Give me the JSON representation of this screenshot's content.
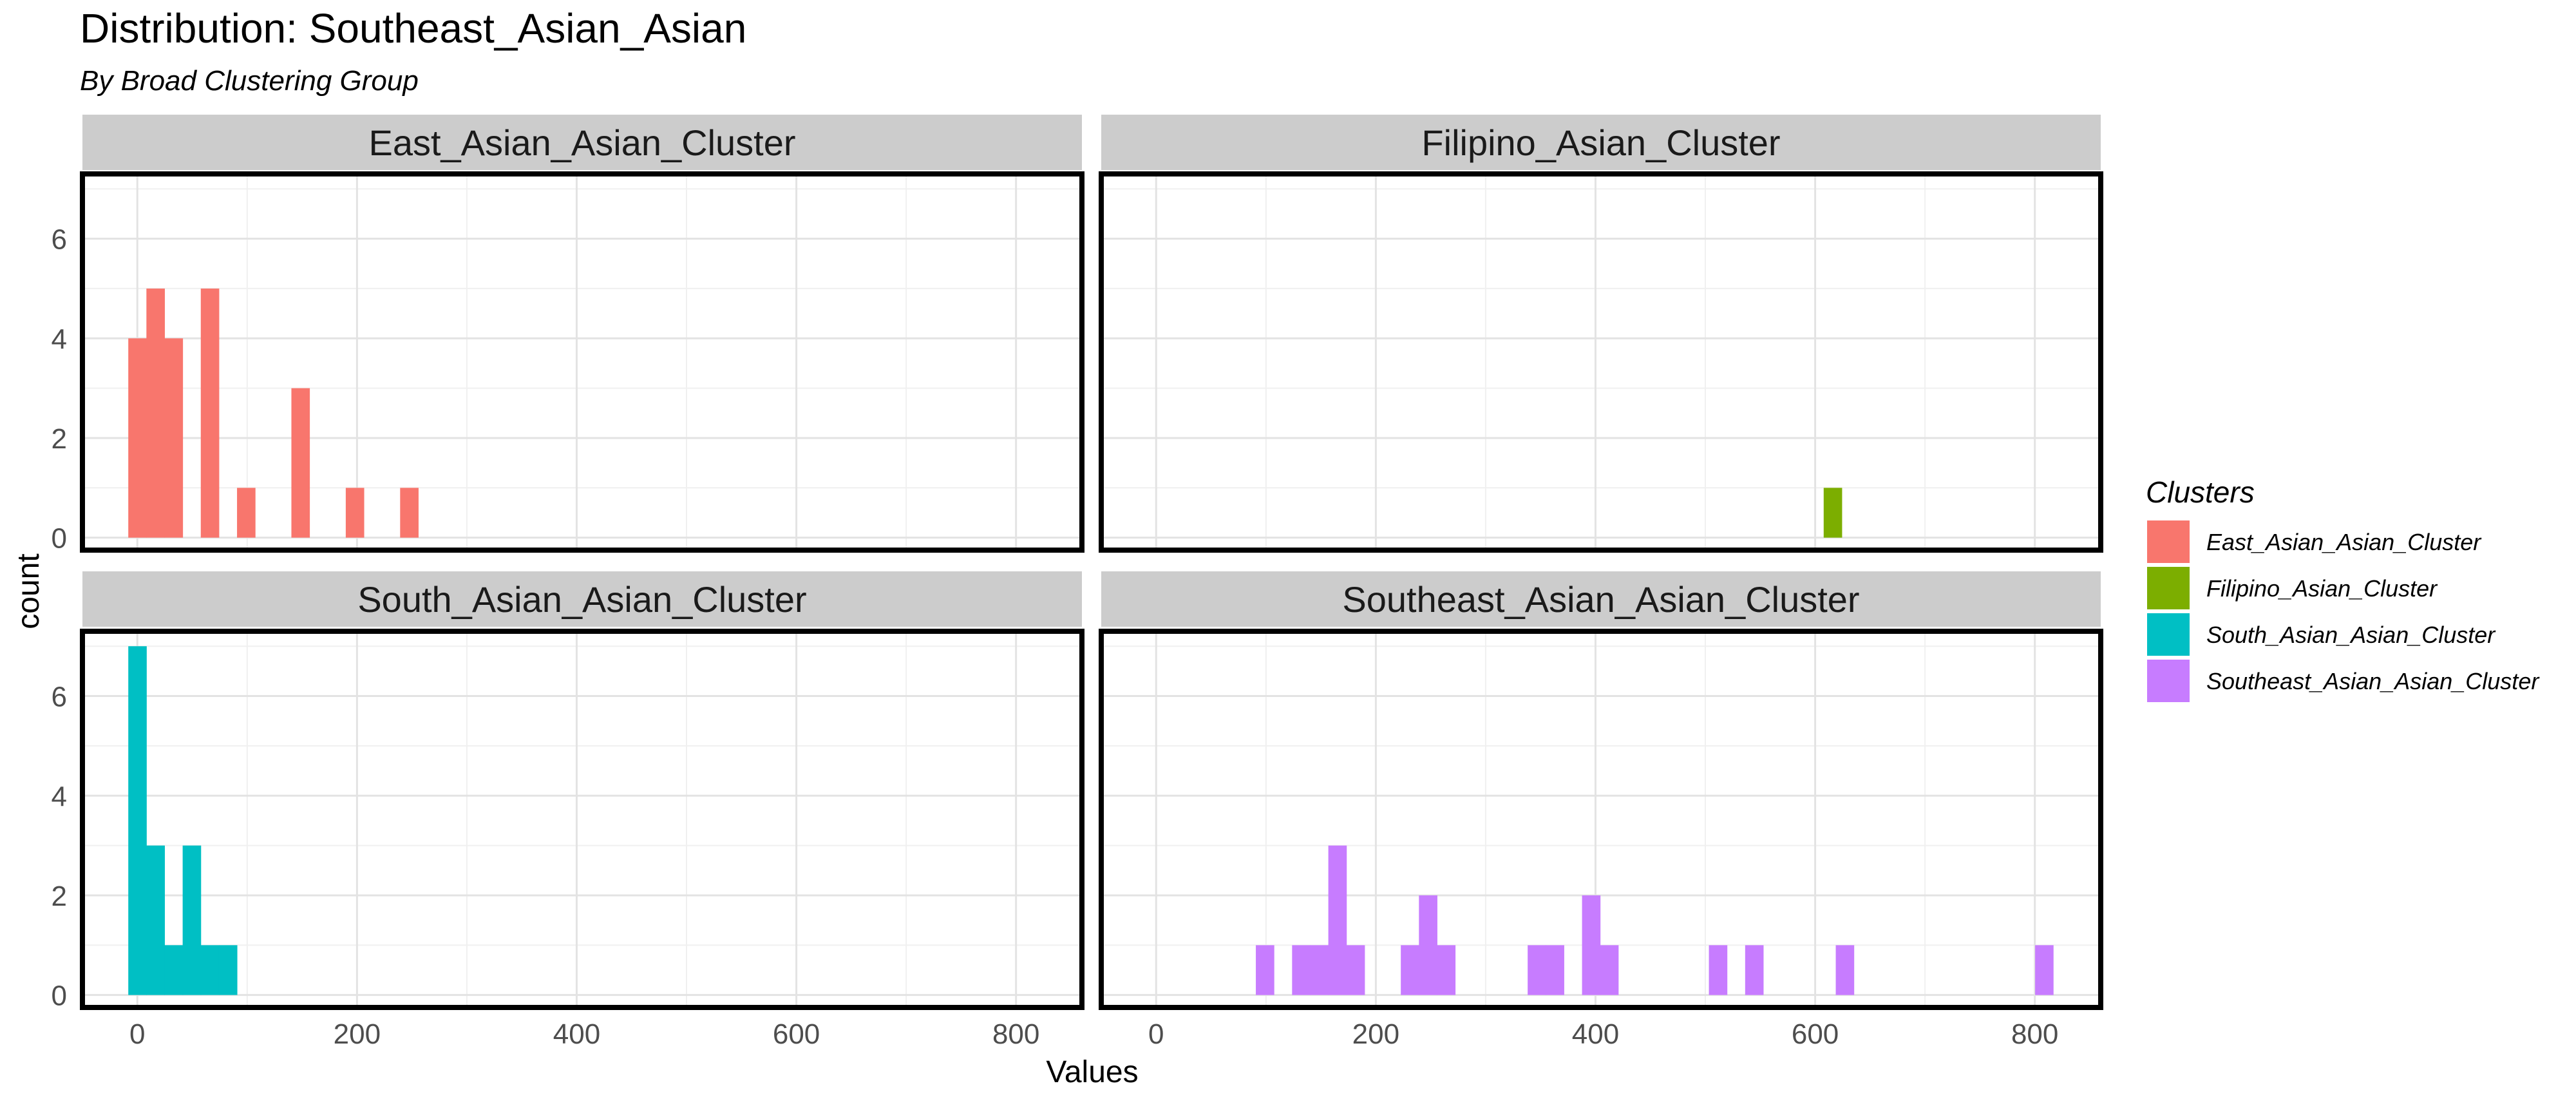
{
  "chart_data": {
    "type": "bar",
    "title": "Distribution: Southeast_Asian_Asian",
    "subtitle": "By Broad Clustering Group",
    "xlabel": "Values",
    "ylabel": "count",
    "xlim": [
      -50,
      860
    ],
    "ylim": [
      -0.25,
      7.3
    ],
    "x_ticks": [
      0,
      200,
      400,
      600,
      800
    ],
    "y_ticks": [
      0,
      2,
      4,
      6
    ],
    "bin_width": 16.5,
    "grid": true,
    "legend": {
      "title": "Clusters",
      "position": "right",
      "entries": [
        {
          "label": "East_Asian_Asian_Cluster",
          "color": "#F8766D"
        },
        {
          "label": "Filipino_Asian_Cluster",
          "color": "#7CAE00"
        },
        {
          "label": "South_Asian_Asian_Cluster",
          "color": "#00BFC4"
        },
        {
          "label": "Southeast_Asian_Asian_Cluster",
          "color": "#C77CFF"
        }
      ]
    },
    "facets": [
      {
        "name": "East_Asian_Asian_Cluster",
        "color": "#F8766D",
        "bins": [
          {
            "x": 0,
            "count": 4
          },
          {
            "x": 16.5,
            "count": 5
          },
          {
            "x": 33,
            "count": 4
          },
          {
            "x": 66,
            "count": 5
          },
          {
            "x": 99,
            "count": 1
          },
          {
            "x": 148.5,
            "count": 3
          },
          {
            "x": 198,
            "count": 1
          },
          {
            "x": 247.5,
            "count": 1
          }
        ]
      },
      {
        "name": "Filipino_Asian_Cluster",
        "color": "#7CAE00",
        "bins": [
          {
            "x": 616,
            "count": 1
          }
        ]
      },
      {
        "name": "South_Asian_Asian_Cluster",
        "color": "#00BFC4",
        "bins": [
          {
            "x": 0,
            "count": 7
          },
          {
            "x": 16.5,
            "count": 3
          },
          {
            "x": 33,
            "count": 1
          },
          {
            "x": 49.5,
            "count": 3
          },
          {
            "x": 66,
            "count": 1
          },
          {
            "x": 82.5,
            "count": 1
          }
        ]
      },
      {
        "name": "Southeast_Asian_Asian_Cluster",
        "color": "#C77CFF",
        "bins": [
          {
            "x": 99,
            "count": 1
          },
          {
            "x": 132,
            "count": 1
          },
          {
            "x": 148.5,
            "count": 1
          },
          {
            "x": 165,
            "count": 3
          },
          {
            "x": 181.5,
            "count": 1
          },
          {
            "x": 231,
            "count": 1
          },
          {
            "x": 247.5,
            "count": 2
          },
          {
            "x": 264,
            "count": 1
          },
          {
            "x": 346.5,
            "count": 1
          },
          {
            "x": 363,
            "count": 1
          },
          {
            "x": 396,
            "count": 2
          },
          {
            "x": 412.5,
            "count": 1
          },
          {
            "x": 511.5,
            "count": 1
          },
          {
            "x": 544.5,
            "count": 1
          },
          {
            "x": 627,
            "count": 1
          },
          {
            "x": 808.5,
            "count": 1
          }
        ]
      }
    ]
  }
}
